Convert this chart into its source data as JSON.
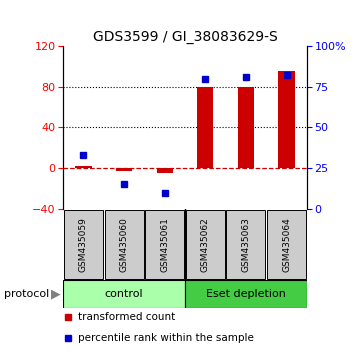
{
  "title": "GDS3599 / GI_38083629-S",
  "samples": [
    "GSM435059",
    "GSM435060",
    "GSM435061",
    "GSM435062",
    "GSM435063",
    "GSM435064"
  ],
  "transformed_count": [
    2,
    -3,
    -5,
    80,
    80,
    95
  ],
  "percentile_rank": [
    33,
    15,
    10,
    80,
    81,
    82
  ],
  "left_ylim": [
    -40,
    120
  ],
  "left_yticks": [
    -40,
    0,
    40,
    80,
    120
  ],
  "right_ylim": [
    0,
    100
  ],
  "right_yticks": [
    0,
    25,
    50,
    75,
    100
  ],
  "right_yticklabels": [
    "0",
    "25",
    "50",
    "75",
    "100%"
  ],
  "bar_color": "#cc0000",
  "dot_color": "#0000cc",
  "tick_bg_color": "#cccccc",
  "ctrl_color": "#aaffaa",
  "eset_color": "#44cc44",
  "title_fontsize": 10,
  "axis_fontsize": 8,
  "legend_items": [
    {
      "color": "#cc0000",
      "label": "transformed count"
    },
    {
      "color": "#0000cc",
      "label": "percentile rank within the sample"
    }
  ]
}
